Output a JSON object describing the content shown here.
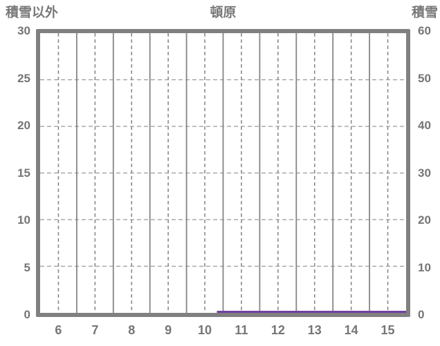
{
  "header": {
    "left_axis_title": "積雪以外",
    "chart_title": "頓原",
    "right_axis_title": "積雪"
  },
  "colors": {
    "background": "#ffffff",
    "text": "#787878",
    "tick_text": "#757575",
    "plot_border": "#808080",
    "grid_solid": "#858585",
    "grid_dashed_vertical": "#8a8a8a",
    "grid_dashed_horizontal": "#9a9a9a",
    "snow_line": "#7040a0"
  },
  "chart_data": {
    "type": "line",
    "title": "頓原",
    "x_axis": {
      "ticks": [
        "6",
        "7",
        "8",
        "9",
        "10",
        "11",
        "12",
        "13",
        "14",
        "15"
      ],
      "min": 5.5,
      "max": 15.5,
      "grid": "solid lines at hour boundaries, dashed lines at labeled hour centers"
    },
    "y_left_axis": {
      "title": "積雪以外",
      "ticks": [
        "30",
        "25",
        "20",
        "15",
        "10",
        "5",
        "0"
      ],
      "min": 0,
      "max": 30
    },
    "y_right_axis": {
      "title": "積雪",
      "ticks": [
        "60",
        "50",
        "40",
        "30",
        "20",
        "10",
        "0"
      ],
      "min": 0,
      "max": 60
    },
    "grid": {
      "horizontal_dashed_levels_left": [
        25,
        20,
        15,
        10,
        5
      ],
      "vertical_dashed_at": [
        6,
        7,
        8,
        9,
        10,
        11,
        12,
        13,
        14,
        15
      ],
      "vertical_solid_at": [
        6.5,
        7.5,
        8.5,
        9.5,
        10.5,
        11.5,
        12.5,
        13.5,
        14.5
      ]
    },
    "series": [
      {
        "name": "積雪",
        "axis": "right",
        "color": "#7040a0",
        "points": [
          {
            "x": 10.33,
            "y": 0
          },
          {
            "x": 15.5,
            "y": 0
          }
        ]
      }
    ]
  }
}
